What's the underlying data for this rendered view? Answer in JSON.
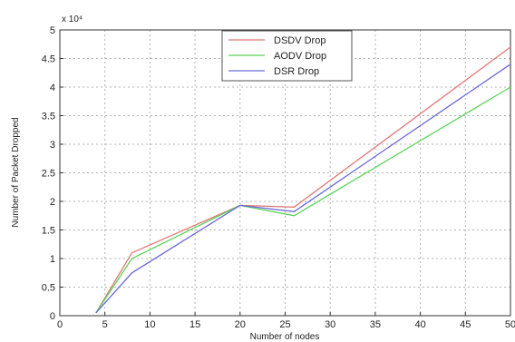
{
  "chart_data": {
    "type": "line",
    "title": "",
    "xlabel": "Number of nodes",
    "ylabel": "Number of Packet Dropped",
    "y_exponent_label": "x 10⁴",
    "xlim": [
      0,
      50
    ],
    "ylim": [
      0,
      5
    ],
    "xticks": [
      "0",
      "5",
      "10",
      "15",
      "20",
      "25",
      "30",
      "35",
      "40",
      "45",
      "50"
    ],
    "yticks": [
      "0",
      "0.5",
      "1",
      "1.5",
      "2",
      "2.5",
      "3",
      "3.5",
      "4",
      "4.5",
      "5"
    ],
    "grid": true,
    "legend_position": "top-center",
    "series": [
      {
        "name": "DSDV Drop",
        "color": "#e07878",
        "x": [
          4,
          8,
          20,
          26,
          50
        ],
        "y": [
          0.05,
          1.1,
          1.93,
          1.9,
          4.7
        ]
      },
      {
        "name": "AODV Drop",
        "color": "#5cd35c",
        "x": [
          4,
          8,
          20,
          26,
          50
        ],
        "y": [
          0.05,
          1.0,
          1.93,
          1.75,
          4.0
        ]
      },
      {
        "name": "DSR Drop",
        "color": "#6a6ad8",
        "x": [
          4,
          8,
          20,
          26,
          50
        ],
        "y": [
          0.05,
          0.75,
          1.93,
          1.82,
          4.4
        ]
      }
    ]
  }
}
